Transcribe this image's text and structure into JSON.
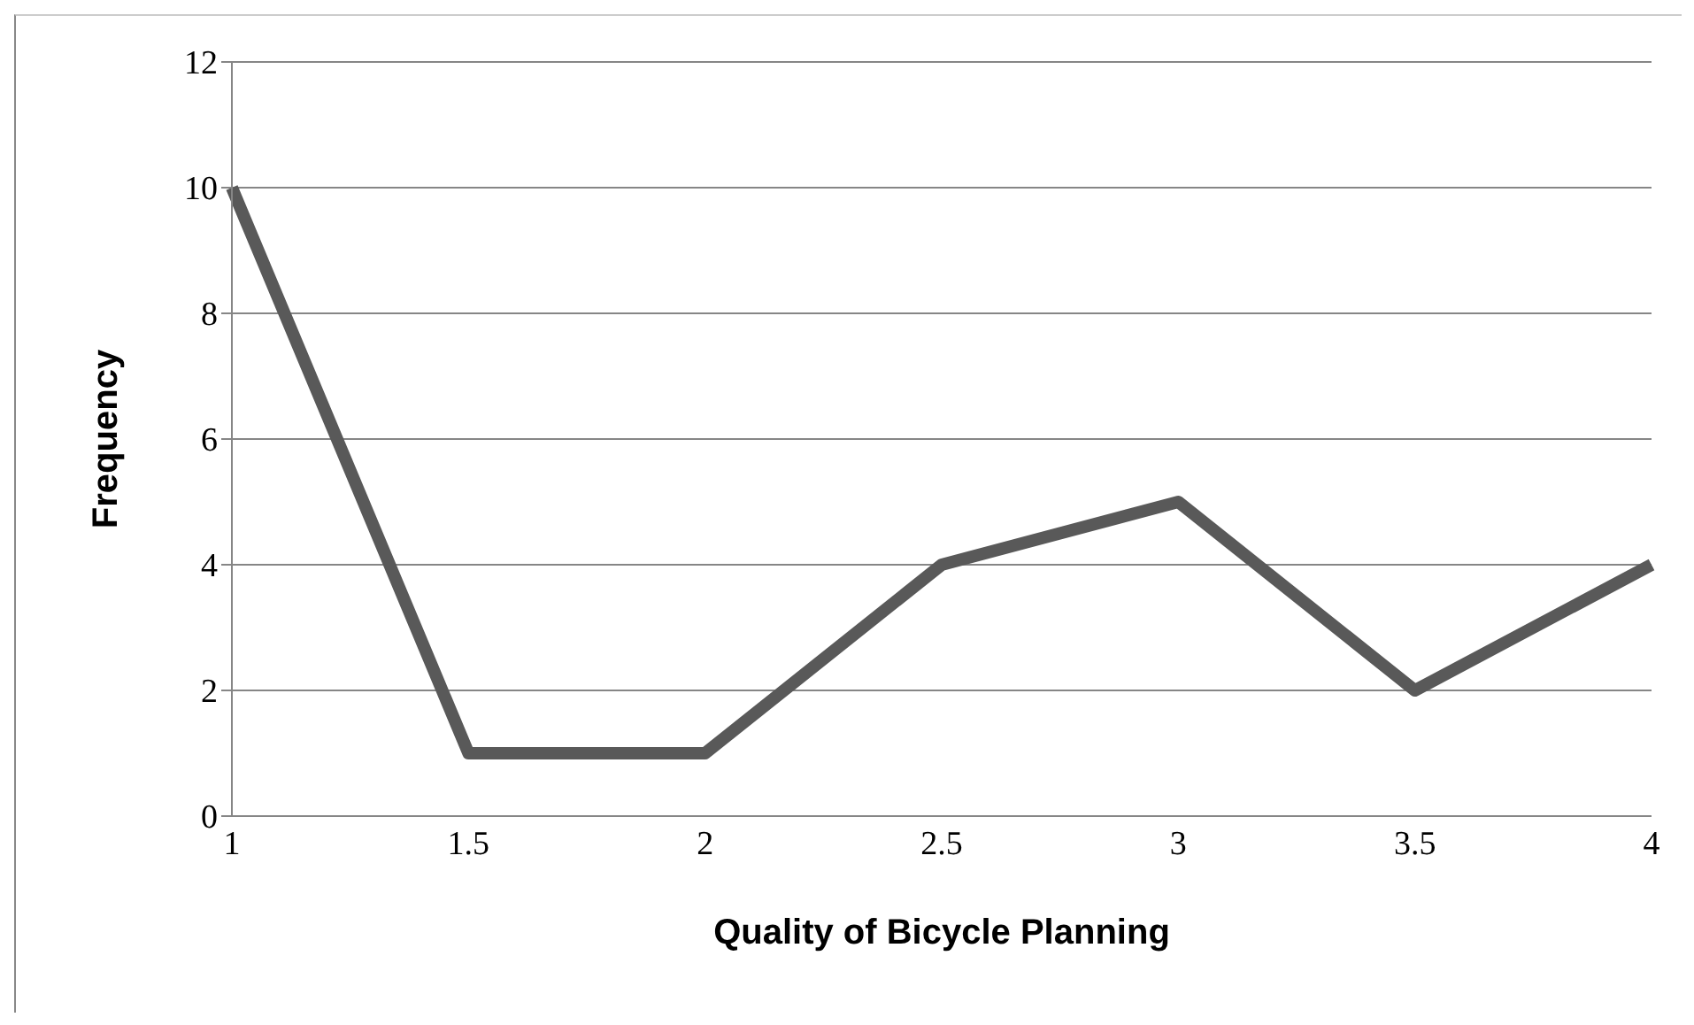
{
  "chart_data": {
    "type": "line",
    "xlabel": "Quality of Bicycle Planning",
    "ylabel": "Frequency",
    "categories": [
      "1",
      "1.5",
      "2",
      "2.5",
      "3",
      "3.5",
      "4"
    ],
    "series": [
      {
        "color": "#595959",
        "values": [
          10,
          1,
          1,
          4,
          5,
          2,
          4
        ]
      }
    ],
    "ylim": [
      0,
      12
    ],
    "yticks": [
      0,
      2,
      4,
      6,
      8,
      10,
      12
    ],
    "grid": "y",
    "legend": false,
    "marker": "none",
    "line_style": "solid"
  }
}
